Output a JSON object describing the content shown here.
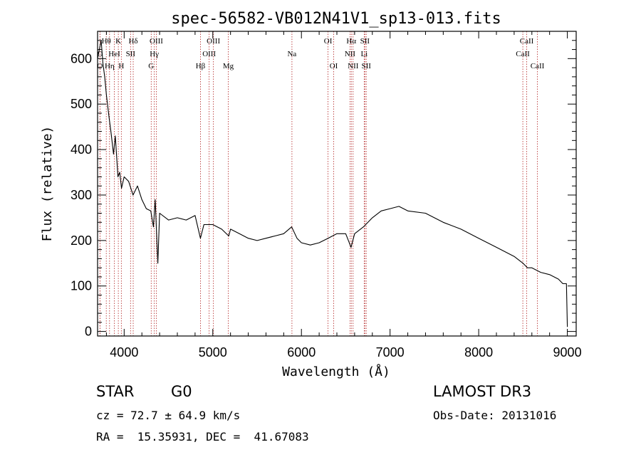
{
  "chart_data": {
    "type": "line",
    "title": "spec-56582-VB012N41V1_sp13-013.fits",
    "xlabel": "Wavelength (Å)",
    "ylabel": "Flux (relative)",
    "xlim": [
      3700,
      9100
    ],
    "ylim": [
      -10,
      660
    ],
    "x_ticks": [
      4000,
      5000,
      6000,
      7000,
      8000,
      9000
    ],
    "y_ticks": [
      0,
      100,
      200,
      300,
      400,
      500,
      600
    ],
    "series": [
      {
        "name": "flux",
        "x": [
          3700,
          3740,
          3760,
          3780,
          3800,
          3830,
          3850,
          3880,
          3900,
          3930,
          3950,
          3970,
          4000,
          4050,
          4100,
          4150,
          4200,
          4250,
          4300,
          4330,
          4350,
          4380,
          4400,
          4500,
          4600,
          4700,
          4800,
          4860,
          4900,
          5000,
          5100,
          5180,
          5200,
          5300,
          5400,
          5500,
          5600,
          5700,
          5800,
          5890,
          5950,
          6000,
          6100,
          6200,
          6300,
          6400,
          6500,
          6560,
          6600,
          6700,
          6800,
          6900,
          7000,
          7100,
          7200,
          7400,
          7600,
          7800,
          8000,
          8200,
          8400,
          8500,
          8550,
          8600,
          8700,
          8800,
          8900,
          8950,
          8990,
          9000
        ],
        "y": [
          600,
          640,
          590,
          560,
          520,
          470,
          440,
          390,
          430,
          340,
          350,
          315,
          340,
          330,
          300,
          320,
          290,
          270,
          265,
          230,
          290,
          150,
          260,
          245,
          250,
          245,
          255,
          205,
          235,
          235,
          225,
          210,
          225,
          215,
          205,
          200,
          205,
          210,
          215,
          230,
          205,
          195,
          190,
          195,
          205,
          215,
          215,
          185,
          215,
          230,
          250,
          265,
          270,
          275,
          265,
          260,
          240,
          225,
          205,
          185,
          165,
          150,
          140,
          140,
          130,
          125,
          115,
          105,
          105,
          10
        ]
      }
    ],
    "spectral_lines": [
      {
        "label": "O",
        "wavelength": 3727,
        "row": 2
      },
      {
        "label": "O",
        "wavelength": 3727,
        "row": 3
      },
      {
        "label": "Hθ",
        "wavelength": 3798,
        "row": 1
      },
      {
        "label": "Hη",
        "wavelength": 3835,
        "row": 3
      },
      {
        "label": "HeI",
        "wavelength": 3889,
        "row": 2
      },
      {
        "label": "K",
        "wavelength": 3934,
        "row": 1
      },
      {
        "label": "H",
        "wavelength": 3968,
        "row": 3
      },
      {
        "label": "SII",
        "wavelength": 4072,
        "row": 2
      },
      {
        "label": "Hδ",
        "wavelength": 4102,
        "row": 1
      },
      {
        "label": "G",
        "wavelength": 4305,
        "row": 3
      },
      {
        "label": "Hγ",
        "wavelength": 4340,
        "row": 2
      },
      {
        "label": "OIII",
        "wavelength": 4363,
        "row": 1
      },
      {
        "label": "Hβ",
        "wavelength": 4861,
        "row": 3
      },
      {
        "label": "OIII",
        "wavelength": 4959,
        "row": 2
      },
      {
        "label": "OIII",
        "wavelength": 5007,
        "row": 1
      },
      {
        "label": "Mg",
        "wavelength": 5175,
        "row": 3
      },
      {
        "label": "Na",
        "wavelength": 5893,
        "row": 2
      },
      {
        "label": "OI",
        "wavelength": 6300,
        "row": 1
      },
      {
        "label": "OI",
        "wavelength": 6364,
        "row": 3
      },
      {
        "label": "NII",
        "wavelength": 6548,
        "row": 2
      },
      {
        "label": "Hα",
        "wavelength": 6563,
        "row": 1
      },
      {
        "label": "NII",
        "wavelength": 6583,
        "row": 3
      },
      {
        "label": "Li",
        "wavelength": 6708,
        "row": 2
      },
      {
        "label": "SII",
        "wavelength": 6716,
        "row": 1
      },
      {
        "label": "SII",
        "wavelength": 6731,
        "row": 3
      },
      {
        "label": "CaII",
        "wavelength": 8498,
        "row": 2
      },
      {
        "label": "CaII",
        "wavelength": 8542,
        "row": 1
      },
      {
        "label": "CaII",
        "wavelength": 8662,
        "row": 3
      }
    ]
  },
  "info": {
    "object_class": "STAR",
    "subclass": "G0",
    "survey": "LAMOST DR3",
    "velocity": "cz = 72.7 ± 64.9 km/s",
    "obs_date": "Obs-Date: 20131016",
    "coords": "RA =  15.35931, DEC =  41.67083"
  },
  "colors": {
    "line_marker": "#b22222",
    "spectrum": "#000000"
  }
}
